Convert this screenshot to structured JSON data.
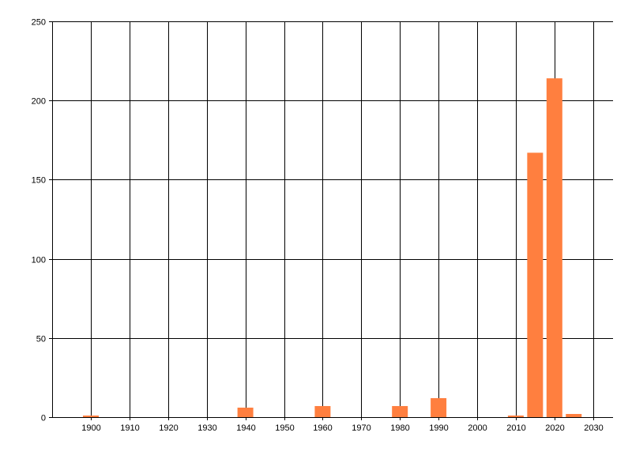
{
  "chart_data": {
    "type": "bar",
    "title": "",
    "xlabel": "",
    "ylabel": "",
    "x": [
      1900,
      1940,
      1960,
      1980,
      1990,
      2010,
      2015,
      2020,
      2025
    ],
    "values": [
      1,
      6,
      7,
      7,
      12,
      1,
      167,
      214,
      2
    ],
    "xlim": [
      1890,
      2035
    ],
    "ylim": [
      0,
      250
    ],
    "x_ticks": [
      1900,
      1910,
      1920,
      1930,
      1940,
      1950,
      1960,
      1970,
      1980,
      1990,
      2000,
      2010,
      2020,
      2030
    ],
    "y_ticks": [
      0,
      50,
      100,
      150,
      200,
      250
    ],
    "grid": true,
    "bar_color": "#FF7F3F",
    "grid_color": "#000000"
  }
}
